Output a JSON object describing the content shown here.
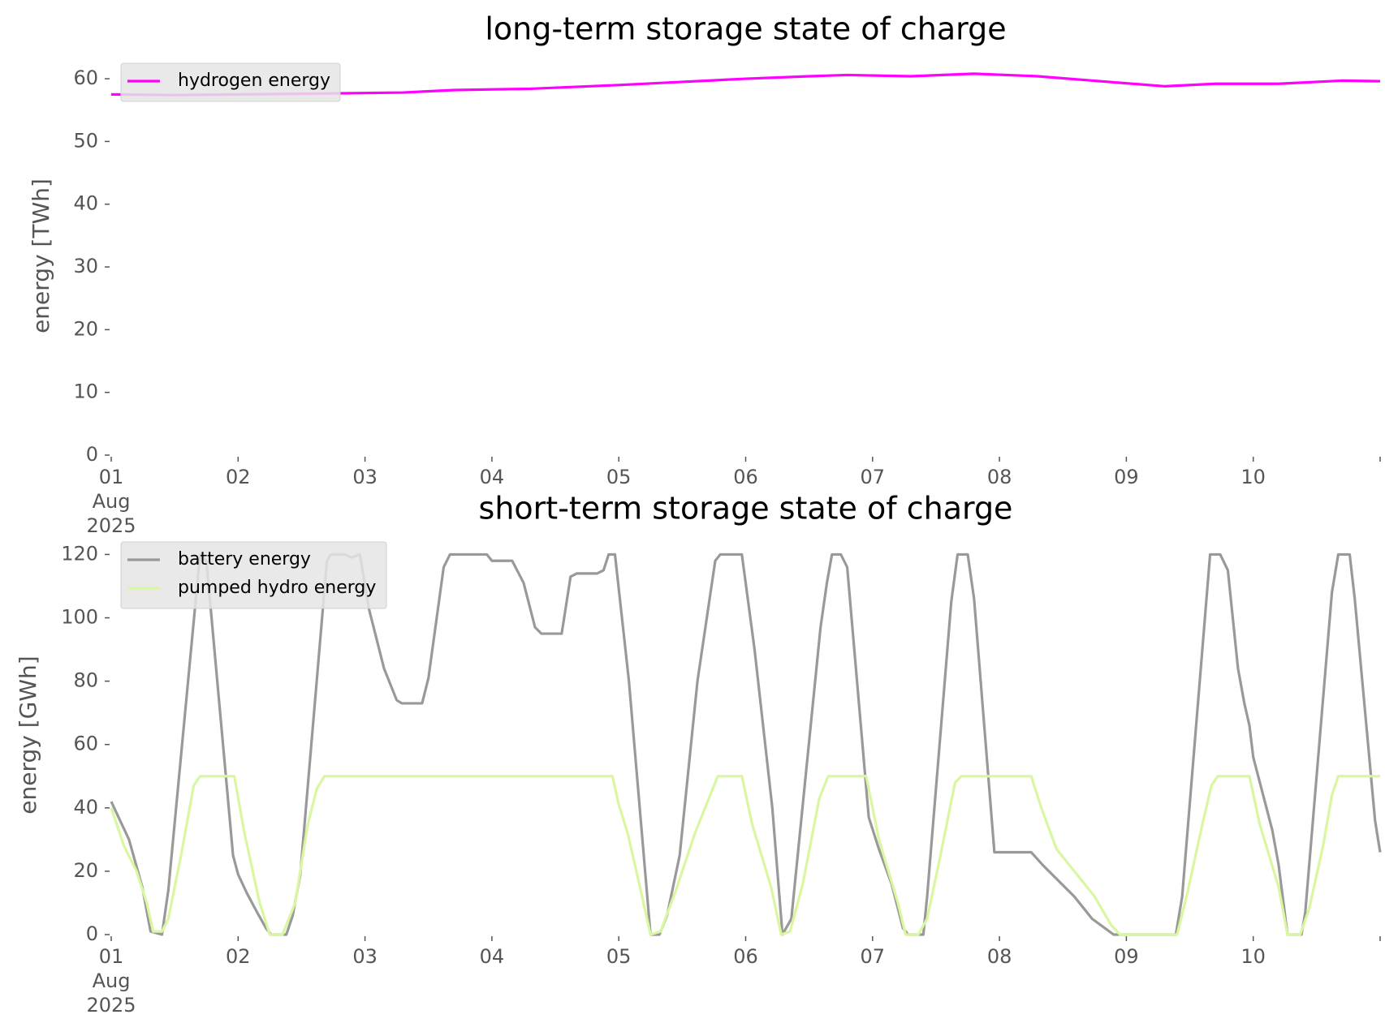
{
  "chart_data": [
    {
      "type": "line",
      "title": "long-term storage state of charge",
      "ylabel": "energy [TWh]",
      "xlim": [
        1,
        11
      ],
      "ylim": [
        0,
        63.5
      ],
      "xticks": [
        {
          "value": 1,
          "label": "01\nAug\n2025"
        },
        {
          "value": 2,
          "label": "02"
        },
        {
          "value": 3,
          "label": "03"
        },
        {
          "value": 4,
          "label": "04"
        },
        {
          "value": 5,
          "label": "05"
        },
        {
          "value": 6,
          "label": "06"
        },
        {
          "value": 7,
          "label": "07"
        },
        {
          "value": 8,
          "label": "08"
        },
        {
          "value": 9,
          "label": "09"
        },
        {
          "value": 10,
          "label": "10"
        }
      ],
      "yticks": [
        0,
        10,
        20,
        30,
        40,
        50,
        60
      ],
      "grid": false,
      "legend": "upper left",
      "series": [
        {
          "name": "hydrogen energy",
          "color": "#ff00ff",
          "x": [
            1,
            1.5,
            2.5,
            3.3,
            3.7,
            4.3,
            5,
            5.5,
            6,
            6.5,
            6.8,
            7.3,
            7.8,
            8.3,
            8.8,
            9.3,
            9.7,
            10.2,
            10.7,
            11
          ],
          "values": [
            57.5,
            57.4,
            57.6,
            57.8,
            58.2,
            58.4,
            59,
            59.5,
            60,
            60.4,
            60.6,
            60.4,
            60.8,
            60.4,
            59.6,
            58.8,
            59.2,
            59.2,
            59.7,
            59.6
          ]
        }
      ]
    },
    {
      "type": "line",
      "title": "short-term storage state of charge",
      "ylabel": "energy [GWh]",
      "xlim": [
        1,
        11
      ],
      "ylim": [
        0,
        126
      ],
      "xticks": [
        {
          "value": 1,
          "label": "01\nAug\n2025"
        },
        {
          "value": 2,
          "label": "02"
        },
        {
          "value": 3,
          "label": "03"
        },
        {
          "value": 4,
          "label": "04"
        },
        {
          "value": 5,
          "label": "05"
        },
        {
          "value": 6,
          "label": "06"
        },
        {
          "value": 7,
          "label": "07"
        },
        {
          "value": 8,
          "label": "08"
        },
        {
          "value": 9,
          "label": "09"
        },
        {
          "value": 10,
          "label": "10"
        }
      ],
      "yticks": [
        0,
        20,
        40,
        60,
        80,
        100,
        120
      ],
      "grid": false,
      "legend": "upper left",
      "series": [
        {
          "name": "battery energy",
          "color": "#999999",
          "x": [
            1,
            1.14,
            1.245,
            1.31,
            1.4,
            1.45,
            1.7,
            1.75,
            1.96,
            2.0,
            2.07,
            2.15,
            2.22,
            2.26,
            2.38,
            2.43,
            2.49,
            2.7,
            2.73,
            2.84,
            2.89,
            2.96,
            3.03,
            3.15,
            3.25,
            3.29,
            3.45,
            3.5,
            3.62,
            3.67,
            3.96,
            4.0,
            4.16,
            4.25,
            4.34,
            4.39,
            4.55,
            4.62,
            4.67,
            4.83,
            4.88,
            4.92,
            4.97,
            5.08,
            5.25,
            5.32,
            5.38,
            5.48,
            5.62,
            5.76,
            5.8,
            5.97,
            6.07,
            6.21,
            6.29,
            6.36,
            6.59,
            6.64,
            6.68,
            6.75,
            6.8,
            6.97,
            7.05,
            7.15,
            7.24,
            7.28,
            7.4,
            7.43,
            7.62,
            7.67,
            7.75,
            7.8,
            7.96,
            8.25,
            8.34,
            8.59,
            8.73,
            8.9,
            9.39,
            9.44,
            9.66,
            9.74,
            9.8,
            9.88,
            9.93,
            9.97,
            10.0,
            10.15,
            10.2,
            10.27,
            10.38,
            10.41,
            10.62,
            10.67,
            10.76,
            10.8,
            10.96,
            11.0
          ],
          "values": [
            42,
            30,
            15,
            1,
            0,
            14,
            120,
            118,
            25,
            19,
            13,
            7,
            2,
            0,
            0,
            6,
            19,
            118,
            120,
            120,
            119,
            120,
            103,
            84,
            74,
            73,
            73,
            81,
            116,
            120,
            120,
            118,
            118,
            111,
            97,
            95,
            95,
            113,
            114,
            114,
            115,
            120,
            120,
            80,
            0,
            0,
            6,
            25,
            80,
            118,
            120,
            120,
            90,
            40,
            0,
            5,
            97,
            111,
            120,
            120,
            116,
            37,
            27,
            16,
            2,
            0,
            0,
            12,
            105,
            120,
            120,
            106,
            26,
            26,
            22,
            12,
            5,
            0,
            0,
            12,
            120,
            120,
            115,
            84,
            73,
            66,
            56,
            33,
            22,
            0,
            0,
            7,
            108,
            120,
            120,
            106,
            36,
            26
          ]
        },
        {
          "name": "pumped hydro energy",
          "color": "#d9f7a1",
          "x": [
            1,
            1.1,
            1.2,
            1.28,
            1.33,
            1.4,
            1.45,
            1.55,
            1.65,
            1.7,
            1.97,
            2.05,
            2.17,
            2.25,
            2.35,
            2.45,
            2.55,
            2.62,
            2.68,
            4.95,
            5.0,
            5.07,
            5.15,
            5.25,
            5.33,
            5.45,
            5.6,
            5.72,
            5.78,
            5.97,
            6.05,
            6.2,
            6.28,
            6.35,
            6.45,
            6.58,
            6.65,
            6.95,
            7.05,
            7.2,
            7.26,
            7.36,
            7.43,
            7.53,
            7.65,
            7.7,
            8.25,
            8.33,
            8.45,
            8.55,
            8.75,
            8.88,
            8.95,
            9.4,
            9.48,
            9.6,
            9.67,
            9.72,
            9.97,
            10.05,
            10.2,
            10.27,
            10.37,
            10.44,
            10.55,
            10.62,
            10.67,
            11
          ],
          "values": [
            40,
            28,
            20,
            10,
            1,
            1,
            5,
            25,
            47,
            50,
            50,
            32,
            10,
            0,
            0,
            10,
            35,
            46,
            50,
            50,
            41,
            32,
            18,
            0,
            1,
            14,
            32,
            44,
            50,
            50,
            35,
            15,
            0,
            1,
            16,
            43,
            50,
            50,
            30,
            10,
            0,
            0,
            5,
            24,
            48,
            50,
            50,
            40,
            27,
            22,
            12,
            3,
            0,
            0,
            13,
            35,
            47,
            50,
            50,
            35,
            15,
            0,
            0,
            8,
            28,
            44,
            50,
            50
          ]
        }
      ]
    }
  ]
}
